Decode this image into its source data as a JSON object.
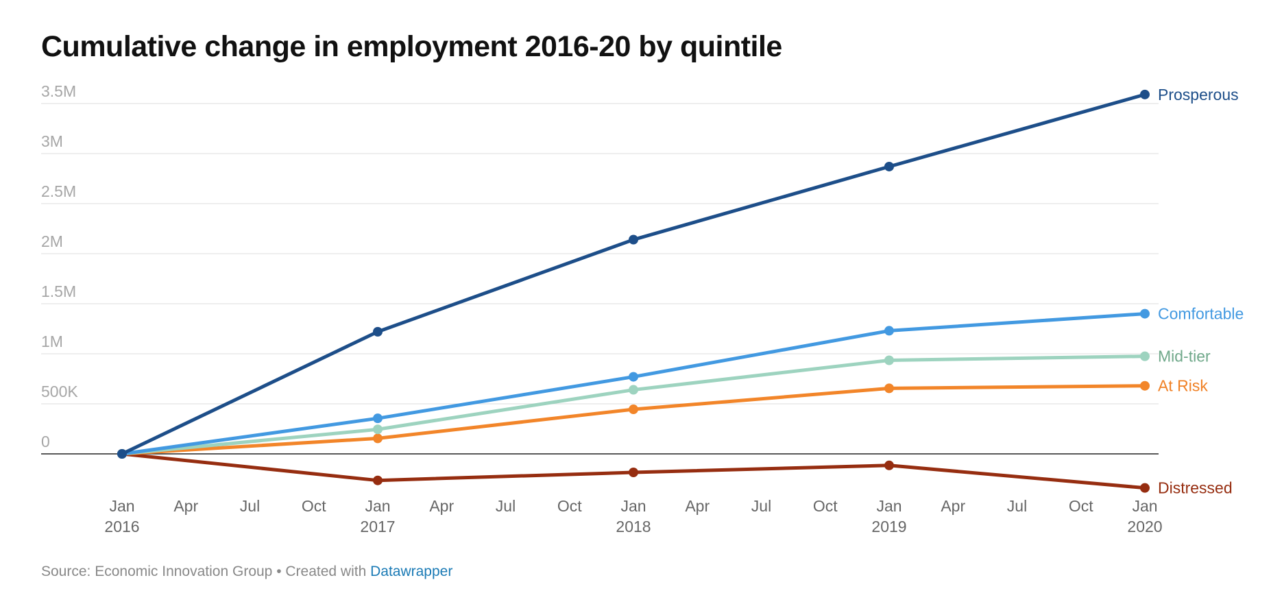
{
  "title": "Cumulative change in employment 2016-20 by quintile",
  "footer": {
    "source_text": "Source: Economic Innovation Group • Created with ",
    "link_text": "Datawrapper"
  },
  "chart_data": {
    "type": "line",
    "title": "Cumulative change in employment 2016-20 by quintile",
    "xlabel": "",
    "ylabel": "",
    "x": [
      "2016-01",
      "2017-01",
      "2018-01",
      "2019-01",
      "2020-01"
    ],
    "ylim": [
      -500000,
      3500000
    ],
    "y_ticks": [
      0,
      500000,
      1000000,
      1500000,
      2000000,
      2500000,
      3000000,
      3500000
    ],
    "y_tick_labels": [
      "0",
      "500K",
      "1M",
      "1.5M",
      "2M",
      "2.5M",
      "3M",
      "3.5M"
    ],
    "x_ticks": [
      {
        "date": "2016-01",
        "month": "Jan",
        "year": "2016"
      },
      {
        "date": "2016-04",
        "month": "Apr",
        "year": ""
      },
      {
        "date": "2016-07",
        "month": "Jul",
        "year": ""
      },
      {
        "date": "2016-10",
        "month": "Oct",
        "year": ""
      },
      {
        "date": "2017-01",
        "month": "Jan",
        "year": "2017"
      },
      {
        "date": "2017-04",
        "month": "Apr",
        "year": ""
      },
      {
        "date": "2017-07",
        "month": "Jul",
        "year": ""
      },
      {
        "date": "2017-10",
        "month": "Oct",
        "year": ""
      },
      {
        "date": "2018-01",
        "month": "Jan",
        "year": "2018"
      },
      {
        "date": "2018-04",
        "month": "Apr",
        "year": ""
      },
      {
        "date": "2018-07",
        "month": "Jul",
        "year": ""
      },
      {
        "date": "2018-10",
        "month": "Oct",
        "year": ""
      },
      {
        "date": "2019-01",
        "month": "Jan",
        "year": "2019"
      },
      {
        "date": "2019-04",
        "month": "Apr",
        "year": ""
      },
      {
        "date": "2019-07",
        "month": "Jul",
        "year": ""
      },
      {
        "date": "2019-10",
        "month": "Oct",
        "year": ""
      },
      {
        "date": "2020-01",
        "month": "Jan",
        "year": "2020"
      }
    ],
    "grid": true,
    "legend": "direct labels at line ends",
    "series": [
      {
        "name": "Prosperous",
        "color": "#1d4e89",
        "label_color": "#1d4e89",
        "values": [
          0,
          1220000,
          2140000,
          2870000,
          3590000
        ]
      },
      {
        "name": "Comfortable",
        "color": "#4299e1",
        "label_color": "#4299e1",
        "values": [
          0,
          355000,
          770000,
          1230000,
          1400000
        ]
      },
      {
        "name": "Mid-tier",
        "color": "#9dd3bf",
        "label_color": "#6fa88a",
        "values": [
          0,
          245000,
          640000,
          935000,
          975000
        ]
      },
      {
        "name": "At Risk",
        "color": "#f28529",
        "label_color": "#f08024",
        "values": [
          0,
          155000,
          445000,
          655000,
          680000
        ]
      },
      {
        "name": "Distressed",
        "color": "#962d10",
        "label_color": "#962d10",
        "values": [
          0,
          -265000,
          -185000,
          -115000,
          -340000
        ]
      }
    ]
  }
}
